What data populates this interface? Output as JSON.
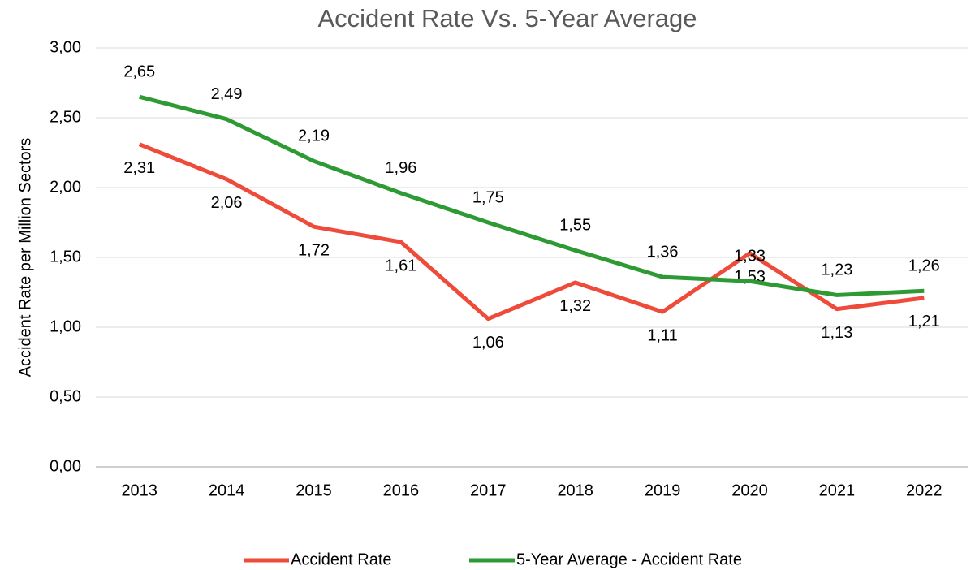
{
  "chart_data": {
    "type": "line",
    "title": "Accident Rate Vs. 5-Year Average",
    "y_label": "Accident Rate per Million Sectors",
    "categories": [
      "2013",
      "2014",
      "2015",
      "2016",
      "2017",
      "2018",
      "2019",
      "2020",
      "2021",
      "2022"
    ],
    "series": [
      {
        "name": "Accident Rate",
        "color": "#ee4b3a",
        "values": [
          2.31,
          2.06,
          1.72,
          1.61,
          1.06,
          1.32,
          1.11,
          1.53,
          1.13,
          1.21
        ],
        "value_labels": [
          "2,31",
          "2,06",
          "1,72",
          "1,61",
          "1,06",
          "1,32",
          "1,11",
          "1,53",
          "1,13",
          "1,21"
        ]
      },
      {
        "name": "5-Year Average - Accident Rate",
        "color": "#2e9a33",
        "values": [
          2.65,
          2.49,
          2.19,
          1.96,
          1.75,
          1.55,
          1.36,
          1.33,
          1.23,
          1.26
        ],
        "value_labels": [
          "2,65",
          "2,49",
          "2,19",
          "1,96",
          "1,75",
          "1,55",
          "1,36",
          "1,33",
          "1,23",
          "1,26"
        ]
      }
    ],
    "ylim": [
      0,
      3
    ],
    "yticks": [
      {
        "value": 0,
        "label": "0,00"
      },
      {
        "value": 0.5,
        "label": "0,50"
      },
      {
        "value": 1,
        "label": "1,00"
      },
      {
        "value": 1.5,
        "label": "1,50"
      },
      {
        "value": 2,
        "label": "2,00"
      },
      {
        "value": 2.5,
        "label": "2,50"
      },
      {
        "value": 3,
        "label": "3,00"
      }
    ],
    "grid": true,
    "legend": "bottom"
  }
}
